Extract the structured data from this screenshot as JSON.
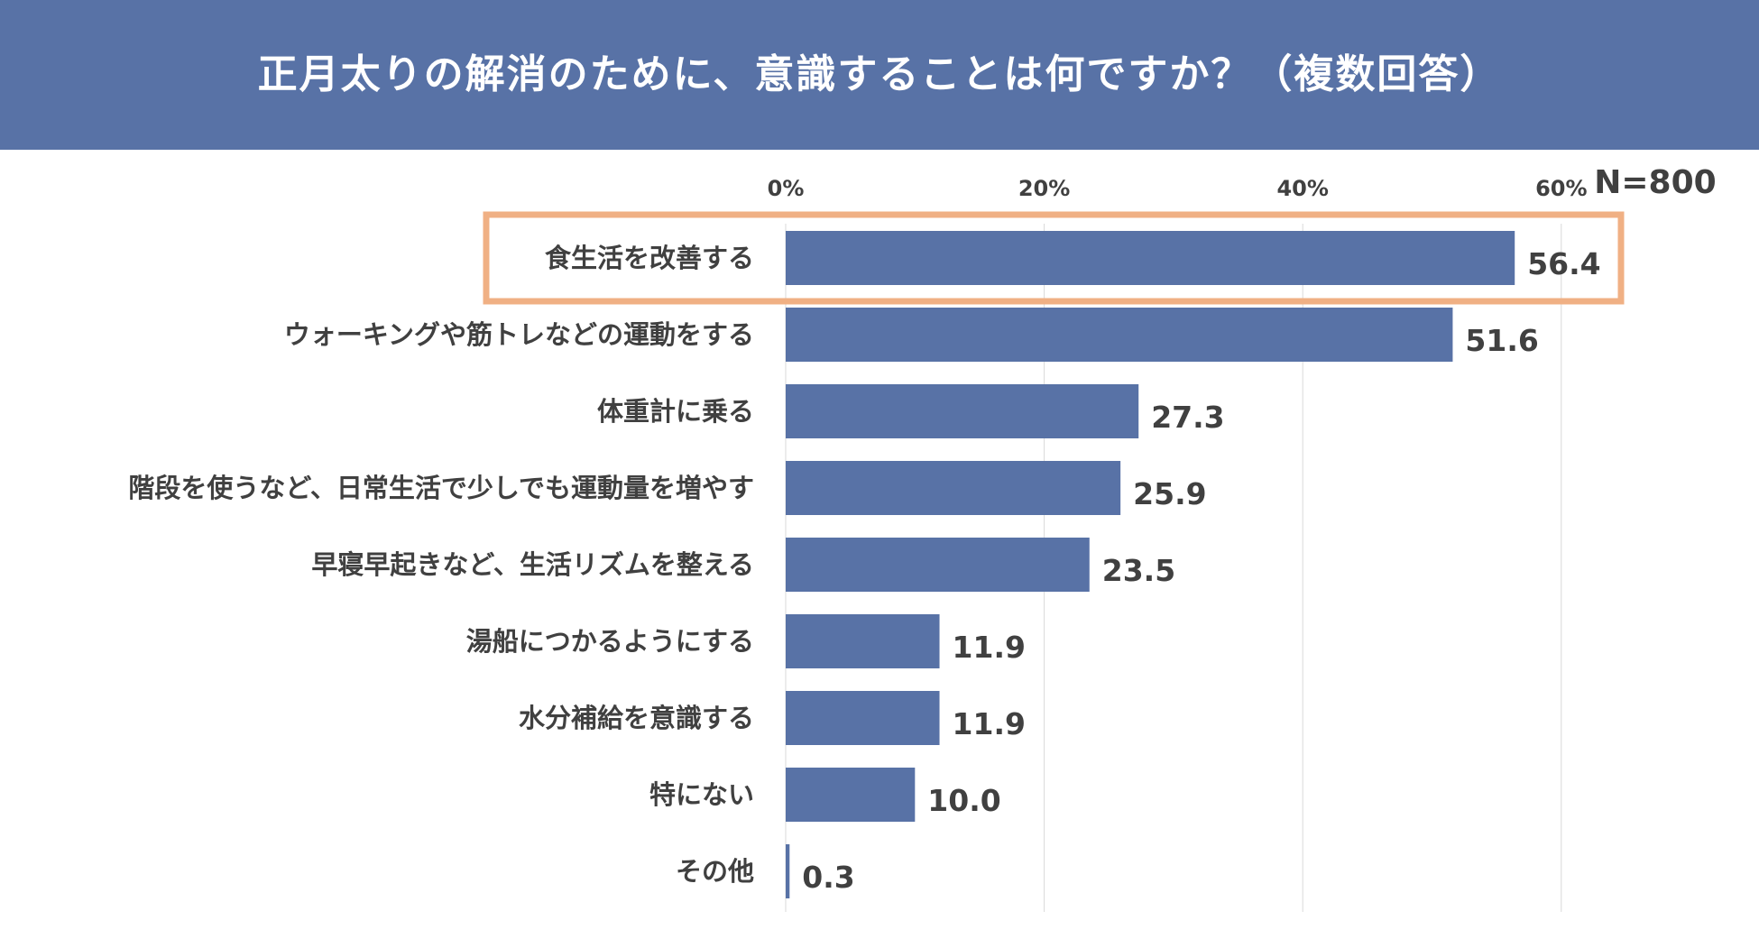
{
  "chart_data": {
    "type": "bar",
    "orientation": "horizontal",
    "title": "正月太りの解消のために、意識することは何ですか？（複数回答）",
    "sample_size": "N=800",
    "categories": [
      "食生活を改善する",
      "ウォーキングや筋トレなどの運動をする",
      "体重計に乗る",
      "階段を使うなど、日常生活で少しでも運動量を増やす",
      "早寝早起きなど、生活リズムを整える",
      "湯船につかるようにする",
      "水分補給を意識する",
      "特にない",
      "その他"
    ],
    "values": [
      56.4,
      51.6,
      27.3,
      25.9,
      23.5,
      11.9,
      11.9,
      10.0,
      0.3
    ],
    "value_labels": [
      "56.4",
      "51.6",
      "27.3",
      "25.9",
      "23.5",
      "11.9",
      "11.9",
      "10.0",
      "0.3"
    ],
    "x_ticks": [
      0,
      20,
      40,
      60
    ],
    "x_tick_labels": [
      "0%",
      "20%",
      "40%",
      "60%"
    ],
    "xlim": [
      0,
      60
    ],
    "axis_position": "top",
    "grid": true,
    "highlighted_index": 0,
    "colors": {
      "header_bg": "#5872a6",
      "bar": "#5872a6",
      "highlight_border": "#f0b084",
      "text": "#404040",
      "grid": "#d9d9d9"
    }
  }
}
